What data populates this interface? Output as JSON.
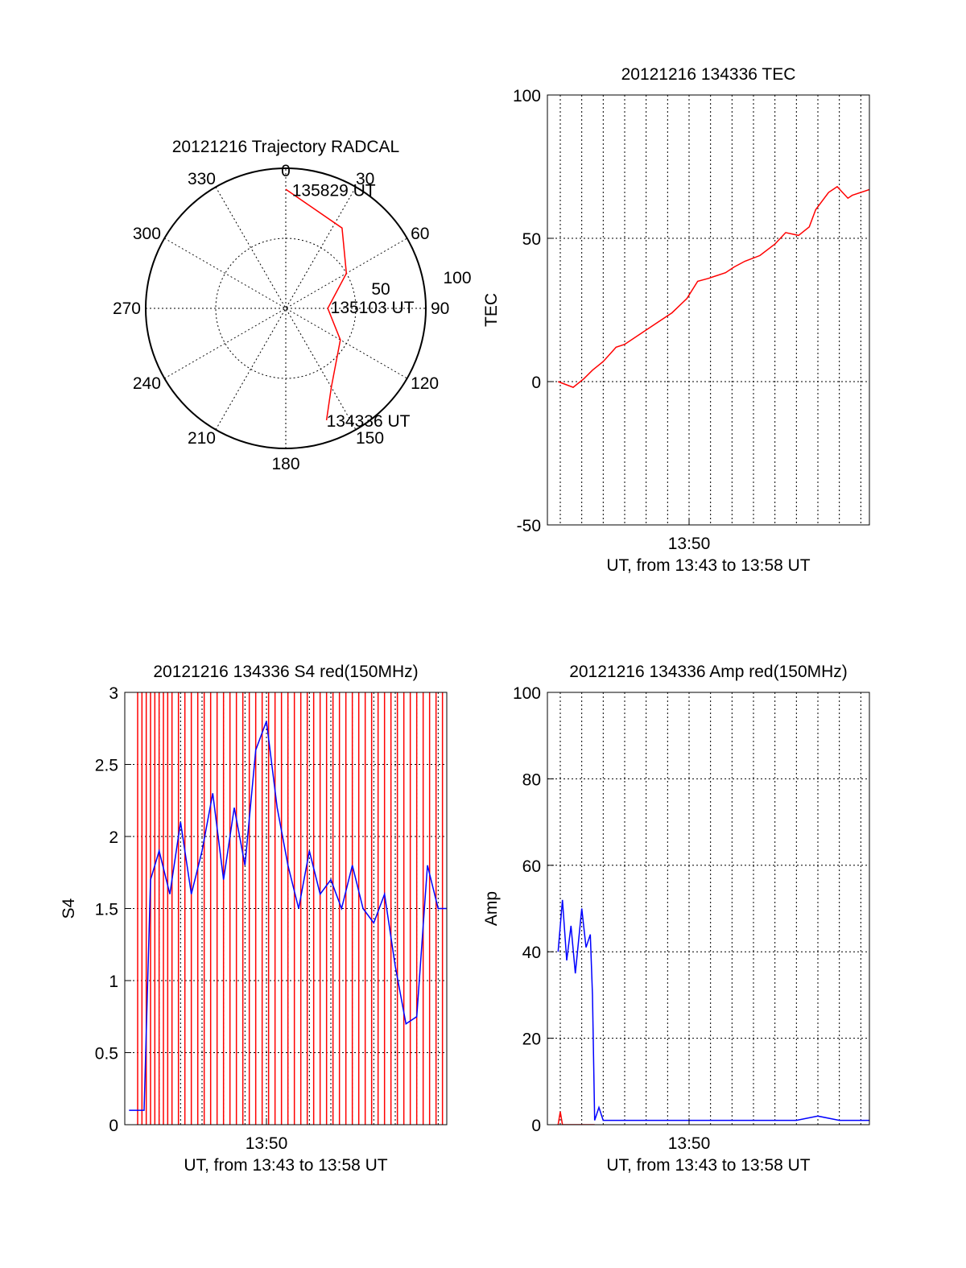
{
  "chart_data": [
    {
      "type": "polar",
      "title": "20121216 Trajectory RADCAL",
      "angle_labels": [
        "0",
        "30",
        "60",
        "90",
        "120",
        "150",
        "180",
        "210",
        "240",
        "270",
        "300",
        "330"
      ],
      "radius_labels": [
        "50",
        "100"
      ],
      "trajectory": {
        "color": "#ff0000",
        "points": [
          {
            "az": 160,
            "r": 85
          },
          {
            "az": 150,
            "r": 65
          },
          {
            "az": 120,
            "r": 45
          },
          {
            "az": 90,
            "r": 30
          },
          {
            "az": 60,
            "r": 50
          },
          {
            "az": 35,
            "r": 70
          },
          {
            "az": 0,
            "r": 85
          }
        ],
        "annotations": [
          {
            "text": "135829 UT",
            "az": 3,
            "r": 85
          },
          {
            "text": "135103 UT",
            "az": 88,
            "r": 32
          },
          {
            "text": "134336 UT",
            "az": 160,
            "r": 85
          }
        ]
      }
    },
    {
      "type": "line",
      "title": "20121216 134336 TEC",
      "ylabel": "TEC",
      "xlabel": "UT, from 13:43 to 13:58 UT",
      "xtick_label": "13:50",
      "xlim_min": [
        43.4,
        58.4
      ],
      "ylim": [
        -50,
        100
      ],
      "yticks": [
        -50,
        0,
        50,
        100
      ],
      "series": [
        {
          "name": "TEC",
          "color": "#ff0000",
          "x": [
            43.9,
            44.6,
            45.1,
            45.5,
            46.0,
            46.6,
            47.0,
            47.8,
            48.6,
            49.2,
            49.9,
            50.4,
            50.9,
            51.7,
            52.1,
            52.6,
            53.3,
            54.0,
            54.5,
            55.1,
            55.6,
            55.9,
            56.5,
            56.9,
            57.4,
            57.6,
            58.4
          ],
          "y": [
            0,
            -2,
            1,
            4,
            7,
            12,
            13,
            17,
            21,
            24,
            29,
            35,
            36,
            38,
            40,
            42,
            44,
            48,
            52,
            51,
            54,
            60,
            66,
            68,
            64,
            65,
            67
          ]
        }
      ]
    },
    {
      "type": "line",
      "title": "20121216 134336 S4 red(150MHz)",
      "ylabel": "S4",
      "xlabel": "UT, from 13:43 to 13:58 UT",
      "xtick_label": "13:50",
      "xlim_min": [
        43.4,
        58.4
      ],
      "ylim": [
        0,
        3
      ],
      "yticks": [
        "0",
        "0.5",
        "1",
        "1.5",
        "2",
        "2.5",
        "3"
      ],
      "series": [
        {
          "name": "S4 red spikes",
          "color": "#ff0000",
          "x": [
            44.0,
            44.2,
            44.4,
            44.6,
            44.8,
            45.0,
            45.2,
            45.4,
            45.6,
            45.9,
            46.2,
            46.5,
            46.8,
            47.1,
            47.4,
            47.7,
            48.0,
            48.3,
            48.6,
            48.9,
            49.2,
            49.5,
            49.8,
            50.1,
            50.4,
            50.7,
            51.0,
            51.3,
            51.6,
            51.9,
            52.2,
            52.5,
            52.8,
            53.1,
            53.4,
            53.7,
            54.0,
            54.3,
            54.6,
            54.9,
            55.2,
            55.5,
            55.8,
            56.1,
            56.4,
            56.7,
            57.0,
            57.3,
            57.6,
            57.9,
            58.2
          ]
        },
        {
          "name": "S4 blue",
          "color": "#0000ff",
          "x": [
            43.6,
            43.8,
            44.0,
            44.3,
            44.6,
            45.0,
            45.5,
            46.0,
            46.5,
            47.0,
            47.5,
            48.0,
            48.5,
            49.0,
            49.5,
            50.0,
            50.5,
            51.0,
            51.5,
            52.0,
            52.5,
            53.0,
            53.5,
            54.0,
            54.5,
            55.0,
            55.5,
            56.0,
            56.5,
            57.0,
            57.5,
            58.0,
            58.4
          ],
          "y": [
            0.1,
            0.1,
            0.1,
            0.1,
            1.7,
            1.9,
            1.6,
            2.1,
            1.6,
            1.9,
            2.3,
            1.7,
            2.2,
            1.8,
            2.6,
            2.8,
            2.2,
            1.8,
            1.5,
            1.9,
            1.6,
            1.7,
            1.5,
            1.8,
            1.5,
            1.4,
            1.6,
            1.1,
            0.7,
            0.75,
            1.8,
            1.5,
            1.5
          ]
        }
      ]
    },
    {
      "type": "line",
      "title": "20121216 134336 Amp red(150MHz)",
      "ylabel": "Amp",
      "xlabel": "UT, from 13:43 to 13:58 UT",
      "xtick_label": "13:50",
      "xlim_min": [
        43.4,
        58.4
      ],
      "ylim": [
        0,
        100
      ],
      "yticks": [
        0,
        20,
        40,
        60,
        80,
        100
      ],
      "series": [
        {
          "name": "Amp red",
          "color": "#ff0000",
          "x": [
            43.9,
            44.0,
            44.1,
            45.0,
            45.6
          ],
          "y": [
            0,
            3,
            0,
            0,
            0
          ]
        },
        {
          "name": "Amp blue",
          "color": "#0000ff",
          "x": [
            43.9,
            44.1,
            44.3,
            44.5,
            44.7,
            45.0,
            45.2,
            45.4,
            45.5,
            45.6,
            45.8,
            46.0,
            46.4,
            47.0,
            48.0,
            49.0,
            50.0,
            51.0,
            52.0,
            53.0,
            54.0,
            55.0,
            56.0,
            57.0,
            58.0,
            58.4
          ],
          "y": [
            40,
            52,
            38,
            46,
            35,
            50,
            41,
            44,
            30,
            1,
            4,
            1,
            1,
            1,
            1,
            1,
            1,
            1,
            1,
            1,
            1,
            1,
            2,
            1,
            1,
            1
          ]
        }
      ]
    }
  ]
}
